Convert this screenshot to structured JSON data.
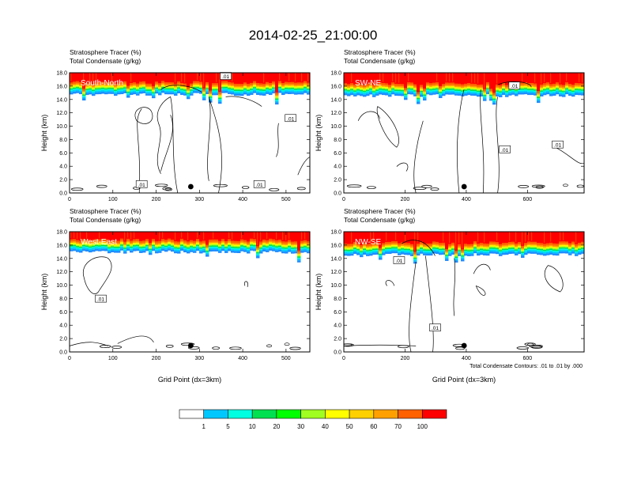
{
  "figure": {
    "title": "2014-02-25_21:00:00",
    "footnote": "Total Condensate Contours: .01 to .01 by .000"
  },
  "chart_data": [
    {
      "type": "heatmap",
      "panel_label": "South-North",
      "header_lines": [
        "Stratosphere Tracer   (%)",
        "Total Condensate   (g/kg)"
      ],
      "ylabel": "Height (km)",
      "xlabel": "",
      "xlim": [
        0,
        555
      ],
      "ylim": [
        0,
        18
      ],
      "xticks": [
        "0",
        "100",
        "200",
        "300",
        "400",
        "500"
      ],
      "yticks": [
        "0.0",
        "2.0",
        "4.0",
        "6.0",
        "8.0",
        "10.0",
        "12.0",
        "14.0",
        "16.0",
        "18.0"
      ],
      "contour_labels": [
        ".01",
        ".01",
        ".01",
        ".01"
      ],
      "tracer_base_km": 14.8,
      "marker_x": 280
    },
    {
      "type": "heatmap",
      "panel_label": "SW-NE",
      "header_lines": [
        "Stratosphere Tracer   (%)",
        "Total Condensate   (g/kg)"
      ],
      "ylabel": "Height (km)",
      "xlabel": "",
      "xlim": [
        0,
        785
      ],
      "ylim": [
        0,
        18
      ],
      "xticks": [
        "0",
        "200",
        "400",
        "600"
      ],
      "yticks": [
        "0.0",
        "2.0",
        "4.0",
        "6.0",
        "8.0",
        "10.0",
        "12.0",
        "14.0",
        "16.0",
        "18.0"
      ],
      "contour_labels": [
        ".01",
        ".01",
        ".01"
      ],
      "tracer_base_km": 14.6,
      "marker_x": 393
    },
    {
      "type": "heatmap",
      "panel_label": "West-East",
      "header_lines": [
        "Stratosphere Tracer   (%)",
        "Total Condensate   (g/kg)"
      ],
      "ylabel": "Height (km)",
      "xlabel": "Grid Point (dx=3km)",
      "xlim": [
        0,
        555
      ],
      "ylim": [
        0,
        18
      ],
      "xticks": [
        "0",
        "100",
        "200",
        "300",
        "400",
        "500"
      ],
      "yticks": [
        "0.0",
        "2.0",
        "4.0",
        "6.0",
        "8.0",
        "10.0",
        "12.0",
        "14.0",
        "16.0",
        "18.0"
      ],
      "contour_labels": [
        ".01"
      ],
      "tracer_base_km": 15.0,
      "marker_x": 280
    },
    {
      "type": "heatmap",
      "panel_label": "NW-SE",
      "header_lines": [
        "Stratosphere Tracer   (%)",
        "Total Condensate   (g/kg)"
      ],
      "ylabel": "Height (km)",
      "xlabel": "Grid Point (dx=3km)",
      "xlim": [
        0,
        785
      ],
      "ylim": [
        0,
        18
      ],
      "xticks": [
        "0",
        "200",
        "400",
        "600"
      ],
      "yticks": [
        "0.0",
        "2.0",
        "4.0",
        "6.0",
        "8.0",
        "10.0",
        "12.0",
        "14.0",
        "16.0",
        "18.0"
      ],
      "contour_labels": [
        ".01",
        ".01"
      ],
      "tracer_base_km": 14.6,
      "marker_x": 393
    }
  ],
  "colorbar": {
    "labels": [
      "1",
      "5",
      "10",
      "20",
      "30",
      "40",
      "50",
      "60",
      "70",
      "100"
    ],
    "colors": [
      "#ffffff",
      "#1e8cff",
      "#00c8ff",
      "#00ffe0",
      "#00e050",
      "#00ff00",
      "#a0ff20",
      "#ffff00",
      "#ffd000",
      "#ffa000",
      "#ff6000",
      "#ff0000"
    ]
  }
}
